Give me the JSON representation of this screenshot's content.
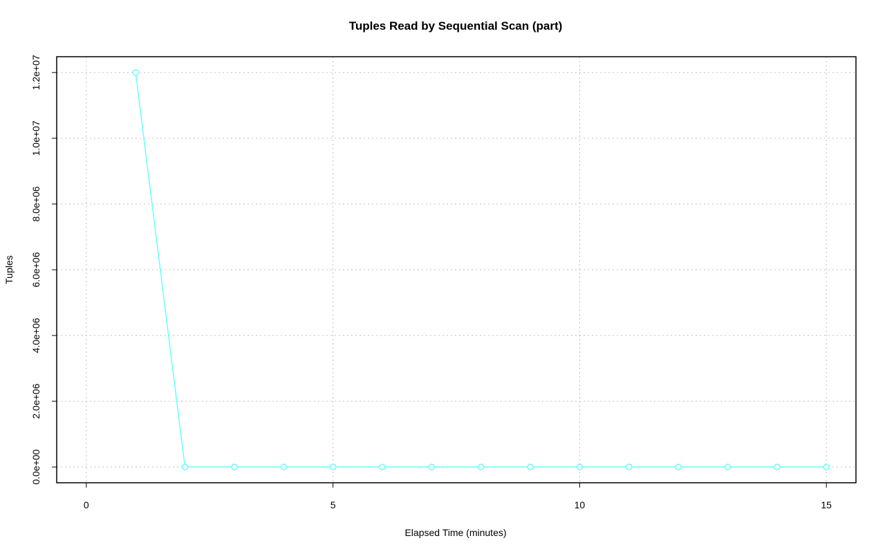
{
  "chart_data": {
    "type": "line",
    "title": "Tuples Read by Sequential Scan (part)",
    "x_label": "Elapsed Time (minutes)",
    "y_label": "Tuples",
    "x": [
      1,
      2,
      3,
      4,
      5,
      6,
      7,
      8,
      9,
      10,
      11,
      12,
      13,
      14,
      15
    ],
    "series": [
      {
        "name": "Tuples",
        "color": "#66ffff",
        "values": [
          12000000,
          0,
          0,
          0,
          0,
          0,
          0,
          0,
          0,
          0,
          0,
          0,
          0,
          0,
          0
        ]
      }
    ],
    "xlim": [
      -0.6,
      15.6
    ],
    "ylim": [
      -480000,
      12480000
    ],
    "xticks": [
      0,
      5,
      10,
      15
    ],
    "yticks": [
      {
        "value": 0,
        "label": "0.0e+00"
      },
      {
        "value": 2000000,
        "label": "2.0e+06"
      },
      {
        "value": 4000000,
        "label": "4.0e+06"
      },
      {
        "value": 6000000,
        "label": "6.0e+06"
      },
      {
        "value": 8000000,
        "label": "8.0e+06"
      },
      {
        "value": 10000000,
        "label": "1.0e+07"
      },
      {
        "value": 12000000,
        "label": "1.2e+07"
      }
    ],
    "grid": true
  }
}
